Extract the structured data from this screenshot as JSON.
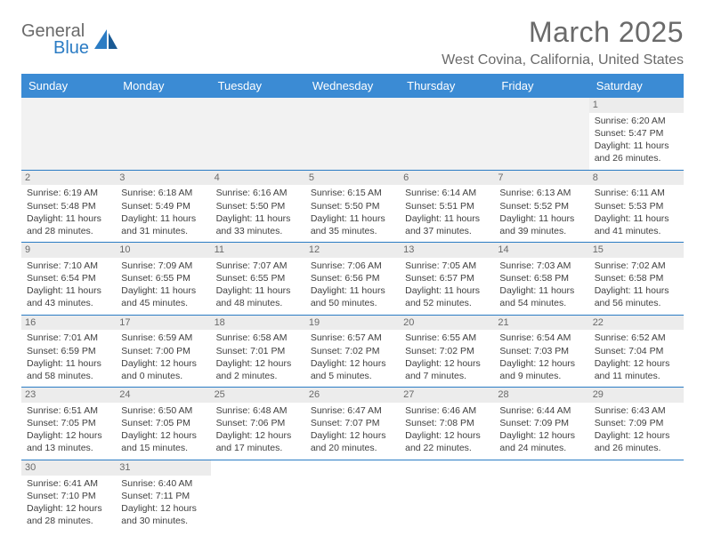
{
  "header": {
    "logo_general": "General",
    "logo_blue": "Blue",
    "month_title": "March 2025",
    "location": "West Covina, California, United States"
  },
  "style": {
    "header_bg": "#3b8bd4",
    "border_color": "#2b7cc4",
    "daynum_bg": "#ececec",
    "blank_bg": "#f2f2f2",
    "text_color": "#404040",
    "header_text_color": "#6a6a6a",
    "body_font_size": 10.5,
    "title_font_size": 32
  },
  "day_names": [
    "Sunday",
    "Monday",
    "Tuesday",
    "Wednesday",
    "Thursday",
    "Friday",
    "Saturday"
  ],
  "weeks": [
    [
      null,
      null,
      null,
      null,
      null,
      null,
      {
        "n": "1",
        "sr": "Sunrise: 6:20 AM",
        "ss": "Sunset: 5:47 PM",
        "dl": "Daylight: 11 hours and 26 minutes."
      }
    ],
    [
      {
        "n": "2",
        "sr": "Sunrise: 6:19 AM",
        "ss": "Sunset: 5:48 PM",
        "dl": "Daylight: 11 hours and 28 minutes."
      },
      {
        "n": "3",
        "sr": "Sunrise: 6:18 AM",
        "ss": "Sunset: 5:49 PM",
        "dl": "Daylight: 11 hours and 31 minutes."
      },
      {
        "n": "4",
        "sr": "Sunrise: 6:16 AM",
        "ss": "Sunset: 5:50 PM",
        "dl": "Daylight: 11 hours and 33 minutes."
      },
      {
        "n": "5",
        "sr": "Sunrise: 6:15 AM",
        "ss": "Sunset: 5:50 PM",
        "dl": "Daylight: 11 hours and 35 minutes."
      },
      {
        "n": "6",
        "sr": "Sunrise: 6:14 AM",
        "ss": "Sunset: 5:51 PM",
        "dl": "Daylight: 11 hours and 37 minutes."
      },
      {
        "n": "7",
        "sr": "Sunrise: 6:13 AM",
        "ss": "Sunset: 5:52 PM",
        "dl": "Daylight: 11 hours and 39 minutes."
      },
      {
        "n": "8",
        "sr": "Sunrise: 6:11 AM",
        "ss": "Sunset: 5:53 PM",
        "dl": "Daylight: 11 hours and 41 minutes."
      }
    ],
    [
      {
        "n": "9",
        "sr": "Sunrise: 7:10 AM",
        "ss": "Sunset: 6:54 PM",
        "dl": "Daylight: 11 hours and 43 minutes."
      },
      {
        "n": "10",
        "sr": "Sunrise: 7:09 AM",
        "ss": "Sunset: 6:55 PM",
        "dl": "Daylight: 11 hours and 45 minutes."
      },
      {
        "n": "11",
        "sr": "Sunrise: 7:07 AM",
        "ss": "Sunset: 6:55 PM",
        "dl": "Daylight: 11 hours and 48 minutes."
      },
      {
        "n": "12",
        "sr": "Sunrise: 7:06 AM",
        "ss": "Sunset: 6:56 PM",
        "dl": "Daylight: 11 hours and 50 minutes."
      },
      {
        "n": "13",
        "sr": "Sunrise: 7:05 AM",
        "ss": "Sunset: 6:57 PM",
        "dl": "Daylight: 11 hours and 52 minutes."
      },
      {
        "n": "14",
        "sr": "Sunrise: 7:03 AM",
        "ss": "Sunset: 6:58 PM",
        "dl": "Daylight: 11 hours and 54 minutes."
      },
      {
        "n": "15",
        "sr": "Sunrise: 7:02 AM",
        "ss": "Sunset: 6:58 PM",
        "dl": "Daylight: 11 hours and 56 minutes."
      }
    ],
    [
      {
        "n": "16",
        "sr": "Sunrise: 7:01 AM",
        "ss": "Sunset: 6:59 PM",
        "dl": "Daylight: 11 hours and 58 minutes."
      },
      {
        "n": "17",
        "sr": "Sunrise: 6:59 AM",
        "ss": "Sunset: 7:00 PM",
        "dl": "Daylight: 12 hours and 0 minutes."
      },
      {
        "n": "18",
        "sr": "Sunrise: 6:58 AM",
        "ss": "Sunset: 7:01 PM",
        "dl": "Daylight: 12 hours and 2 minutes."
      },
      {
        "n": "19",
        "sr": "Sunrise: 6:57 AM",
        "ss": "Sunset: 7:02 PM",
        "dl": "Daylight: 12 hours and 5 minutes."
      },
      {
        "n": "20",
        "sr": "Sunrise: 6:55 AM",
        "ss": "Sunset: 7:02 PM",
        "dl": "Daylight: 12 hours and 7 minutes."
      },
      {
        "n": "21",
        "sr": "Sunrise: 6:54 AM",
        "ss": "Sunset: 7:03 PM",
        "dl": "Daylight: 12 hours and 9 minutes."
      },
      {
        "n": "22",
        "sr": "Sunrise: 6:52 AM",
        "ss": "Sunset: 7:04 PM",
        "dl": "Daylight: 12 hours and 11 minutes."
      }
    ],
    [
      {
        "n": "23",
        "sr": "Sunrise: 6:51 AM",
        "ss": "Sunset: 7:05 PM",
        "dl": "Daylight: 12 hours and 13 minutes."
      },
      {
        "n": "24",
        "sr": "Sunrise: 6:50 AM",
        "ss": "Sunset: 7:05 PM",
        "dl": "Daylight: 12 hours and 15 minutes."
      },
      {
        "n": "25",
        "sr": "Sunrise: 6:48 AM",
        "ss": "Sunset: 7:06 PM",
        "dl": "Daylight: 12 hours and 17 minutes."
      },
      {
        "n": "26",
        "sr": "Sunrise: 6:47 AM",
        "ss": "Sunset: 7:07 PM",
        "dl": "Daylight: 12 hours and 20 minutes."
      },
      {
        "n": "27",
        "sr": "Sunrise: 6:46 AM",
        "ss": "Sunset: 7:08 PM",
        "dl": "Daylight: 12 hours and 22 minutes."
      },
      {
        "n": "28",
        "sr": "Sunrise: 6:44 AM",
        "ss": "Sunset: 7:09 PM",
        "dl": "Daylight: 12 hours and 24 minutes."
      },
      {
        "n": "29",
        "sr": "Sunrise: 6:43 AM",
        "ss": "Sunset: 7:09 PM",
        "dl": "Daylight: 12 hours and 26 minutes."
      }
    ],
    [
      {
        "n": "30",
        "sr": "Sunrise: 6:41 AM",
        "ss": "Sunset: 7:10 PM",
        "dl": "Daylight: 12 hours and 28 minutes."
      },
      {
        "n": "31",
        "sr": "Sunrise: 6:40 AM",
        "ss": "Sunset: 7:11 PM",
        "dl": "Daylight: 12 hours and 30 minutes."
      },
      null,
      null,
      null,
      null,
      null
    ]
  ]
}
